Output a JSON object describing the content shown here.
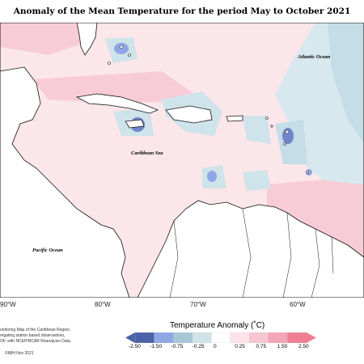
{
  "title": "Anomaly of the Mean Temperature for the period May to October 2021",
  "map": {
    "labels": {
      "atlantic": "Atlantic Ocean",
      "caribbean": "Caribbean Sea",
      "pacific": "Pacific Ocean"
    },
    "longitudes": [
      "90°W",
      "80°W",
      "70°W",
      "60°W"
    ]
  },
  "credits": {
    "line1": "onitoring Map of the Caribbean Region.",
    "line2": "regating station based observations,",
    "line3": "OF, with NCEP/NCAR Reanalysis Data.",
    "copyright": "©IMH Nov 2021"
  },
  "legend": {
    "title": "Temperature Anomaly (˚C)",
    "ticks": [
      "-2.50",
      "-1.50",
      "-0.75",
      "-0.25",
      "0",
      "0.25",
      "0.75",
      "1.50",
      "2.50"
    ],
    "colors": [
      "#4a63a8",
      "#8fa6e6",
      "#a7c6d8",
      "#cfe3ea",
      "#ffffff",
      "#fde3e8",
      "#f8c6d2",
      "#f4a5b6",
      "#ee7f93"
    ]
  }
}
